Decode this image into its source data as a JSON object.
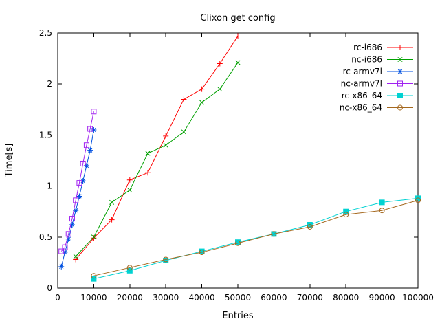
{
  "chart_data": {
    "type": "line",
    "title": "Clixon get config",
    "xlabel": "Entries",
    "ylabel": "Time[s]",
    "xlim": [
      0,
      100000
    ],
    "ylim": [
      0,
      2.5
    ],
    "xticks": [
      0,
      10000,
      20000,
      30000,
      40000,
      50000,
      60000,
      70000,
      80000,
      90000,
      100000
    ],
    "yticks": [
      0,
      0.5,
      1,
      1.5,
      2,
      2.5
    ],
    "grid": false,
    "background": "#ffffff",
    "border_color": "#000000",
    "legend_position": "top-right-inside",
    "series": [
      {
        "name": "rc-i686",
        "color": "#ff0000",
        "marker": "plus",
        "points": [
          [
            5000,
            0.28
          ],
          [
            10000,
            0.49
          ],
          [
            15000,
            0.67
          ],
          [
            20000,
            1.06
          ],
          [
            25000,
            1.13
          ],
          [
            30000,
            1.49
          ],
          [
            35000,
            1.85
          ],
          [
            40000,
            1.95
          ],
          [
            45000,
            2.2
          ],
          [
            50000,
            2.47
          ]
        ]
      },
      {
        "name": "nc-i686",
        "color": "#00a000",
        "marker": "cross",
        "points": [
          [
            5000,
            0.31
          ],
          [
            10000,
            0.5
          ],
          [
            15000,
            0.84
          ],
          [
            20000,
            0.96
          ],
          [
            25000,
            1.32
          ],
          [
            30000,
            1.4
          ],
          [
            35000,
            1.53
          ],
          [
            40000,
            1.82
          ],
          [
            45000,
            1.95
          ],
          [
            50000,
            2.21
          ]
        ]
      },
      {
        "name": "rc-armv7l",
        "color": "#0050e0",
        "marker": "asterisk",
        "points": [
          [
            1000,
            0.21
          ],
          [
            2000,
            0.35
          ],
          [
            3000,
            0.48
          ],
          [
            4000,
            0.62
          ],
          [
            5000,
            0.76
          ],
          [
            6000,
            0.9
          ],
          [
            7000,
            1.05
          ],
          [
            8000,
            1.2
          ],
          [
            9000,
            1.35
          ],
          [
            10000,
            1.55
          ]
        ]
      },
      {
        "name": "nc-armv7l",
        "color": "#a020f0",
        "marker": "square-open",
        "points": [
          [
            1000,
            0.36
          ],
          [
            2000,
            0.4
          ],
          [
            3000,
            0.53
          ],
          [
            4000,
            0.68
          ],
          [
            5000,
            0.86
          ],
          [
            6000,
            1.03
          ],
          [
            7000,
            1.22
          ],
          [
            8000,
            1.4
          ],
          [
            9000,
            1.56
          ],
          [
            10000,
            1.73
          ]
        ]
      },
      {
        "name": "rc-x86_64",
        "color": "#00d2d2",
        "marker": "square-filled",
        "points": [
          [
            10000,
            0.09
          ],
          [
            20000,
            0.17
          ],
          [
            30000,
            0.27
          ],
          [
            40000,
            0.36
          ],
          [
            50000,
            0.45
          ],
          [
            60000,
            0.53
          ],
          [
            70000,
            0.62
          ],
          [
            80000,
            0.75
          ],
          [
            90000,
            0.84
          ],
          [
            100000,
            0.88
          ]
        ]
      },
      {
        "name": "nc-x86_64",
        "color": "#a5681e",
        "marker": "circle-open",
        "points": [
          [
            10000,
            0.12
          ],
          [
            20000,
            0.2
          ],
          [
            30000,
            0.28
          ],
          [
            40000,
            0.35
          ],
          [
            50000,
            0.44
          ],
          [
            60000,
            0.53
          ],
          [
            70000,
            0.6
          ],
          [
            80000,
            0.72
          ],
          [
            90000,
            0.76
          ],
          [
            100000,
            0.86
          ]
        ]
      }
    ]
  }
}
